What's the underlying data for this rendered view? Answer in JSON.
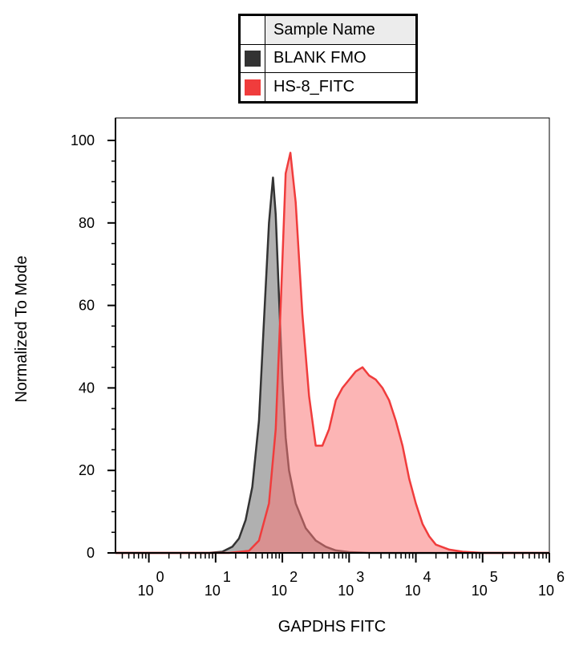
{
  "chart_data": {
    "type": "area",
    "title": "",
    "xlabel": "GAPDHS FITC",
    "ylabel": "Normalized To Mode",
    "xscale": "log",
    "xlim": [
      -0.5,
      6
    ],
    "ylim": [
      0,
      100
    ],
    "yticks": [
      0,
      20,
      40,
      60,
      80,
      100
    ],
    "xticks": [
      {
        "base": "10",
        "exp": "0",
        "value": 0
      },
      {
        "base": "10",
        "exp": "1",
        "value": 1
      },
      {
        "base": "10",
        "exp": "2",
        "value": 2
      },
      {
        "base": "10",
        "exp": "3",
        "value": 3
      },
      {
        "base": "10",
        "exp": "4",
        "value": 4
      },
      {
        "base": "10",
        "exp": "5",
        "value": 5
      },
      {
        "base": "10",
        "exp": "6",
        "value": 6
      }
    ],
    "legend": {
      "header": "Sample Name",
      "placement": "top"
    },
    "series": [
      {
        "name": "BLANK FMO",
        "color": "#333333",
        "fill": "rgba(80,80,80,0.45)",
        "x": [
          -0.5,
          0.6,
          0.9,
          1.1,
          1.25,
          1.35,
          1.45,
          1.55,
          1.65,
          1.72,
          1.8,
          1.86,
          1.9,
          1.95,
          2.0,
          2.05,
          2.1,
          2.2,
          2.35,
          2.5,
          2.65,
          2.8,
          3.0,
          3.3,
          6.0
        ],
        "y": [
          0,
          0,
          0,
          0.3,
          1.5,
          3.5,
          8,
          16,
          32,
          55,
          80,
          91,
          82,
          62,
          42,
          28,
          20,
          12,
          6,
          3,
          1.5,
          0.6,
          0.2,
          0,
          0
        ]
      },
      {
        "name": "HS-8_FITC",
        "color": "#f03c3c",
        "fill": "rgba(250,120,120,0.55)",
        "x": [
          -0.5,
          1.2,
          1.5,
          1.65,
          1.8,
          1.9,
          1.98,
          2.05,
          2.12,
          2.2,
          2.3,
          2.4,
          2.5,
          2.6,
          2.7,
          2.8,
          2.9,
          3.0,
          3.1,
          3.2,
          3.3,
          3.4,
          3.5,
          3.6,
          3.7,
          3.8,
          3.9,
          4.0,
          4.1,
          4.2,
          4.3,
          4.5,
          4.7,
          5.0,
          6.0
        ],
        "y": [
          0,
          0,
          0.5,
          3,
          12,
          30,
          62,
          92,
          97,
          85,
          58,
          38,
          26,
          26,
          30,
          37,
          40,
          42,
          44,
          45,
          43,
          42,
          40,
          37,
          32,
          26,
          18,
          12,
          7,
          4,
          2,
          0.8,
          0.3,
          0,
          0
        ]
      }
    ]
  }
}
